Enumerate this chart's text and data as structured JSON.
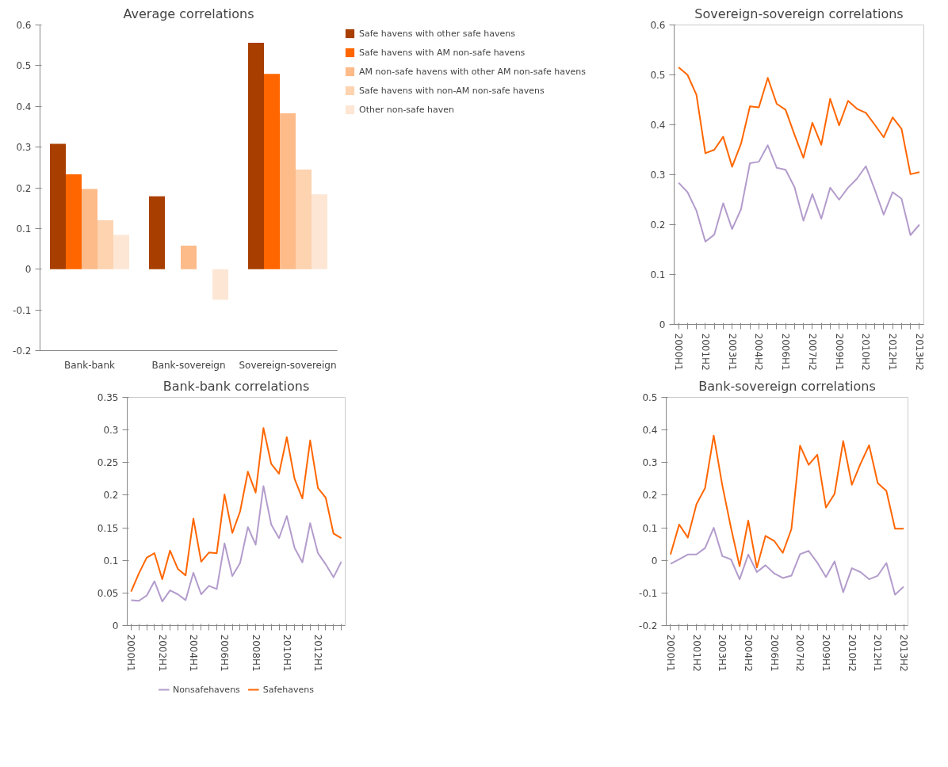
{
  "chart_data": [
    {
      "type": "bar",
      "title": "Average correlations",
      "categories": [
        "Bank-bank",
        "Bank-sovereign",
        "Sovereign-sovereign"
      ],
      "ylim": [
        -0.2,
        0.6
      ],
      "yticks": [
        -0.2,
        -0.1,
        0,
        0.1,
        0.2,
        0.3,
        0.4,
        0.5,
        0.6
      ],
      "grid": false,
      "legend": "right",
      "series": [
        {
          "name": "Safe havens with other safe havens",
          "color": "#a83e00",
          "values": [
            0.308,
            0.179,
            0.556
          ]
        },
        {
          "name": "Safe havens with AM non-safe havens",
          "color": "#ff6600",
          "values": [
            0.233,
            null,
            0.48
          ]
        },
        {
          "name": "AM non-safe havens with other AM non-safe havens",
          "color": "#fdbb8a",
          "values": [
            0.197,
            0.058,
            0.383
          ]
        },
        {
          "name": "Safe havens with non-AM non-safe havens",
          "color": "#fdd3b0",
          "values": [
            0.12,
            null,
            0.245
          ]
        },
        {
          "name": "Other non-safe haven",
          "color": "#fde6d4",
          "values": [
            0.084,
            -0.075,
            0.184
          ]
        }
      ]
    },
    {
      "type": "line",
      "title": "Sovereign-sovereign correlations",
      "categories": [
        "2000H1",
        null,
        null,
        "2001H2",
        null,
        null,
        "2003H1",
        null,
        null,
        "2004H2",
        null,
        null,
        "2006H1",
        null,
        null,
        "2007H2",
        null,
        null,
        "2009H1",
        null,
        null,
        "2010H2",
        null,
        null,
        "2012H1",
        null,
        null,
        "2013H2"
      ],
      "ylim": [
        0,
        0.6
      ],
      "yticks": [
        0,
        0.1,
        0.2,
        0.3,
        0.4,
        0.5,
        0.6
      ],
      "grid": false,
      "legend": false,
      "series": [
        {
          "color": "#b39ccc",
          "values": [
            0.284,
            0.265,
            0.228,
            0.166,
            0.18,
            0.243,
            0.191,
            0.231,
            0.323,
            0.326,
            0.359,
            0.314,
            0.31,
            0.275,
            0.208,
            0.261,
            0.212,
            0.274,
            0.25,
            0.274,
            0.292,
            0.317,
            0.27,
            0.22,
            0.265,
            0.252,
            0.179,
            0.2
          ]
        },
        {
          "color": "#ff6600",
          "values": [
            0.515,
            0.5,
            0.46,
            0.343,
            0.35,
            0.376,
            0.316,
            0.362,
            0.437,
            0.435,
            0.494,
            0.442,
            0.43,
            0.38,
            0.334,
            0.404,
            0.36,
            0.452,
            0.399,
            0.448,
            0.432,
            0.424,
            0.4,
            0.375,
            0.415,
            0.392,
            0.301,
            0.305
          ]
        }
      ]
    },
    {
      "type": "line",
      "title": "Bank-bank correlations",
      "categories": [
        "2000H1",
        null,
        null,
        null,
        "2002H1",
        null,
        null,
        null,
        "2004H1",
        null,
        null,
        null,
        "2006H1",
        null,
        null,
        null,
        "2008H1",
        null,
        null,
        null,
        "2010H1",
        null,
        null,
        null,
        "2012H1",
        null,
        null,
        null
      ],
      "ylim": [
        0,
        0.35
      ],
      "yticks": [
        0,
        0.05,
        0.1,
        0.15,
        0.2,
        0.25,
        0.3,
        0.35
      ],
      "grid": false,
      "legend": "bottom",
      "series": [
        {
          "name": "Nonsafehavens",
          "color": "#b39ccc",
          "values": [
            0.039,
            0.038,
            0.046,
            0.068,
            0.037,
            0.054,
            0.048,
            0.039,
            0.081,
            0.048,
            0.061,
            0.056,
            0.126,
            0.076,
            0.096,
            0.151,
            0.124,
            0.214,
            0.155,
            0.134,
            0.168,
            0.119,
            0.097,
            0.157,
            0.111,
            0.094,
            0.074,
            0.098
          ]
        },
        {
          "name": "Safehavens",
          "color": "#ff6600",
          "values": [
            0.052,
            0.08,
            0.104,
            0.111,
            0.071,
            0.115,
            0.087,
            0.077,
            0.164,
            0.098,
            0.112,
            0.111,
            0.201,
            0.142,
            0.175,
            0.236,
            0.204,
            0.303,
            0.248,
            0.233,
            0.289,
            0.225,
            0.195,
            0.284,
            0.211,
            0.196,
            0.141,
            0.134
          ]
        }
      ]
    },
    {
      "type": "line",
      "title": "Bank-sovereign correlations",
      "categories": [
        "2000H1",
        null,
        null,
        "2001H2",
        null,
        null,
        "2003H1",
        null,
        null,
        "2004H2",
        null,
        null,
        "2006H1",
        null,
        null,
        "2007H2",
        null,
        null,
        "2009H1",
        null,
        null,
        "2010H2",
        null,
        null,
        "2012H1",
        null,
        null,
        "2013H2"
      ],
      "ylim": [
        -0.2,
        0.5
      ],
      "yticks": [
        -0.2,
        -0.1,
        0,
        0.1,
        0.2,
        0.3,
        0.4,
        0.5
      ],
      "grid": false,
      "legend": false,
      "series": [
        {
          "color": "#b39ccc",
          "values": [
            -0.011,
            0.003,
            0.018,
            0.018,
            0.038,
            0.1,
            0.013,
            0.003,
            -0.058,
            0.018,
            -0.036,
            -0.015,
            -0.04,
            -0.054,
            -0.047,
            0.019,
            0.029,
            -0.007,
            -0.051,
            -0.003,
            -0.098,
            -0.024,
            -0.036,
            -0.058,
            -0.047,
            -0.008,
            -0.105,
            -0.081
          ]
        },
        {
          "color": "#ff6600",
          "values": [
            0.018,
            0.11,
            0.07,
            0.172,
            0.222,
            0.383,
            0.23,
            0.1,
            -0.018,
            0.122,
            -0.022,
            0.075,
            0.06,
            0.023,
            0.096,
            0.352,
            0.293,
            0.324,
            0.162,
            0.204,
            0.366,
            0.232,
            0.296,
            0.353,
            0.237,
            0.213,
            0.097,
            0.097
          ]
        }
      ]
    }
  ]
}
